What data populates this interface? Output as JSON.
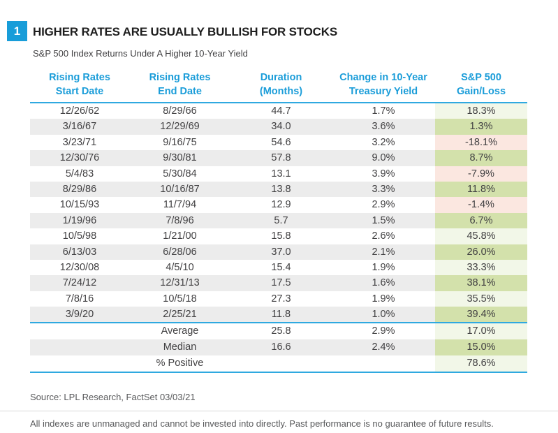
{
  "figure": {
    "number": "1",
    "title": "HIGHER RATES ARE USUALLY BULLISH FOR STOCKS",
    "subtitle": "S&P 500 Index Returns Under A Higher 10-Year Yield"
  },
  "table": {
    "columns": [
      {
        "line1": "Rising Rates",
        "line2": "Start Date"
      },
      {
        "line1": "Rising Rates",
        "line2": "End Date"
      },
      {
        "line1": "Duration",
        "line2": "(Months)"
      },
      {
        "line1": "Change in 10-Year",
        "line2": "Treasury Yield"
      },
      {
        "line1": "S&P 500",
        "line2": "Gain/Loss"
      }
    ],
    "rows": [
      {
        "start": "12/26/62",
        "end": "8/29/66",
        "duration": "44.7",
        "yield_change": "1.7%",
        "gain": "18.3%",
        "sign": "positive"
      },
      {
        "start": "3/16/67",
        "end": "12/29/69",
        "duration": "34.0",
        "yield_change": "3.6%",
        "gain": "1.3%",
        "sign": "positive"
      },
      {
        "start": "3/23/71",
        "end": "9/16/75",
        "duration": "54.6",
        "yield_change": "3.2%",
        "gain": "-18.1%",
        "sign": "negative"
      },
      {
        "start": "12/30/76",
        "end": "9/30/81",
        "duration": "57.8",
        "yield_change": "9.0%",
        "gain": "8.7%",
        "sign": "positive"
      },
      {
        "start": "5/4/83",
        "end": "5/30/84",
        "duration": "13.1",
        "yield_change": "3.9%",
        "gain": "-7.9%",
        "sign": "negative"
      },
      {
        "start": "8/29/86",
        "end": "10/16/87",
        "duration": "13.8",
        "yield_change": "3.3%",
        "gain": "11.8%",
        "sign": "positive"
      },
      {
        "start": "10/15/93",
        "end": "11/7/94",
        "duration": "12.9",
        "yield_change": "2.9%",
        "gain": "-1.4%",
        "sign": "negative"
      },
      {
        "start": "1/19/96",
        "end": "7/8/96",
        "duration": "5.7",
        "yield_change": "1.5%",
        "gain": "6.7%",
        "sign": "positive"
      },
      {
        "start": "10/5/98",
        "end": "1/21/00",
        "duration": "15.8",
        "yield_change": "2.6%",
        "gain": "45.8%",
        "sign": "positive"
      },
      {
        "start": "6/13/03",
        "end": "6/28/06",
        "duration": "37.0",
        "yield_change": "2.1%",
        "gain": "26.0%",
        "sign": "positive"
      },
      {
        "start": "12/30/08",
        "end": "4/5/10",
        "duration": "15.4",
        "yield_change": "1.9%",
        "gain": "33.3%",
        "sign": "positive"
      },
      {
        "start": "7/24/12",
        "end": "12/31/13",
        "duration": "17.5",
        "yield_change": "1.6%",
        "gain": "38.1%",
        "sign": "positive"
      },
      {
        "start": "7/8/16",
        "end": "10/5/18",
        "duration": "27.3",
        "yield_change": "1.9%",
        "gain": "35.5%",
        "sign": "positive"
      },
      {
        "start": "3/9/20",
        "end": "2/25/21",
        "duration": "11.8",
        "yield_change": "1.0%",
        "gain": "39.4%",
        "sign": "positive"
      }
    ],
    "summary": [
      {
        "label": "Average",
        "duration": "25.8",
        "yield_change": "2.9%",
        "gain": "17.0%"
      },
      {
        "label": "Median",
        "duration": "16.6",
        "yield_change": "2.4%",
        "gain": "15.0%"
      },
      {
        "label": "% Positive",
        "duration": "",
        "yield_change": "",
        "gain": "78.6%"
      }
    ]
  },
  "footer": {
    "source": "Source: LPL Research, FactSet 03/03/21",
    "disclaimer": "All indexes are unmanaged and cannot be invested into directly. Past performance is no guarantee of future results."
  },
  "colors": {
    "badge_blue": "#189dd9",
    "header_text_blue": "#1b9dd9",
    "rule_blue": "#2fa9e0",
    "stripe_gray": "#ececec",
    "gain_positive_light": "#f2f7e8",
    "gain_positive_medium": "#d3e1ab",
    "gain_negative_pink": "#fbe7e0",
    "text_dark": "#414042",
    "footer_text": "#58595b"
  },
  "chart_data": {
    "type": "table",
    "title": "Higher Rates Are Usually Bullish For Stocks",
    "subtitle": "S&P 500 Index Returns Under A Higher 10-Year Yield",
    "columns": [
      "Rising Rates Start Date",
      "Rising Rates End Date",
      "Duration (Months)",
      "Change in 10-Year Treasury Yield",
      "S&P 500 Gain/Loss"
    ],
    "rows": [
      {
        "start_date": "12/26/62",
        "end_date": "8/29/66",
        "duration_months": 44.7,
        "change_in_10y_yield_pct": 1.7,
        "sp500_gain_loss_pct": 18.3
      },
      {
        "start_date": "3/16/67",
        "end_date": "12/29/69",
        "duration_months": 34.0,
        "change_in_10y_yield_pct": 3.6,
        "sp500_gain_loss_pct": 1.3
      },
      {
        "start_date": "3/23/71",
        "end_date": "9/16/75",
        "duration_months": 54.6,
        "change_in_10y_yield_pct": 3.2,
        "sp500_gain_loss_pct": -18.1
      },
      {
        "start_date": "12/30/76",
        "end_date": "9/30/81",
        "duration_months": 57.8,
        "change_in_10y_yield_pct": 9.0,
        "sp500_gain_loss_pct": 8.7
      },
      {
        "start_date": "5/4/83",
        "end_date": "5/30/84",
        "duration_months": 13.1,
        "change_in_10y_yield_pct": 3.9,
        "sp500_gain_loss_pct": -7.9
      },
      {
        "start_date": "8/29/86",
        "end_date": "10/16/87",
        "duration_months": 13.8,
        "change_in_10y_yield_pct": 3.3,
        "sp500_gain_loss_pct": 11.8
      },
      {
        "start_date": "10/15/93",
        "end_date": "11/7/94",
        "duration_months": 12.9,
        "change_in_10y_yield_pct": 2.9,
        "sp500_gain_loss_pct": -1.4
      },
      {
        "start_date": "1/19/96",
        "end_date": "7/8/96",
        "duration_months": 5.7,
        "change_in_10y_yield_pct": 1.5,
        "sp500_gain_loss_pct": 6.7
      },
      {
        "start_date": "10/5/98",
        "end_date": "1/21/00",
        "duration_months": 15.8,
        "change_in_10y_yield_pct": 2.6,
        "sp500_gain_loss_pct": 45.8
      },
      {
        "start_date": "6/13/03",
        "end_date": "6/28/06",
        "duration_months": 37.0,
        "change_in_10y_yield_pct": 2.1,
        "sp500_gain_loss_pct": 26.0
      },
      {
        "start_date": "12/30/08",
        "end_date": "4/5/10",
        "duration_months": 15.4,
        "change_in_10y_yield_pct": 1.9,
        "sp500_gain_loss_pct": 33.3
      },
      {
        "start_date": "7/24/12",
        "end_date": "12/31/13",
        "duration_months": 17.5,
        "change_in_10y_yield_pct": 1.6,
        "sp500_gain_loss_pct": 38.1
      },
      {
        "start_date": "7/8/16",
        "end_date": "10/5/18",
        "duration_months": 27.3,
        "change_in_10y_yield_pct": 1.9,
        "sp500_gain_loss_pct": 35.5
      },
      {
        "start_date": "3/9/20",
        "end_date": "2/25/21",
        "duration_months": 11.8,
        "change_in_10y_yield_pct": 1.0,
        "sp500_gain_loss_pct": 39.4
      }
    ],
    "summary": {
      "average": {
        "duration_months": 25.8,
        "change_in_10y_yield_pct": 2.9,
        "sp500_gain_loss_pct": 17.0
      },
      "median": {
        "duration_months": 16.6,
        "change_in_10y_yield_pct": 2.4,
        "sp500_gain_loss_pct": 15.0
      },
      "pct_positive": 78.6
    },
    "source": "Source: LPL Research, FactSet 03/03/21"
  }
}
